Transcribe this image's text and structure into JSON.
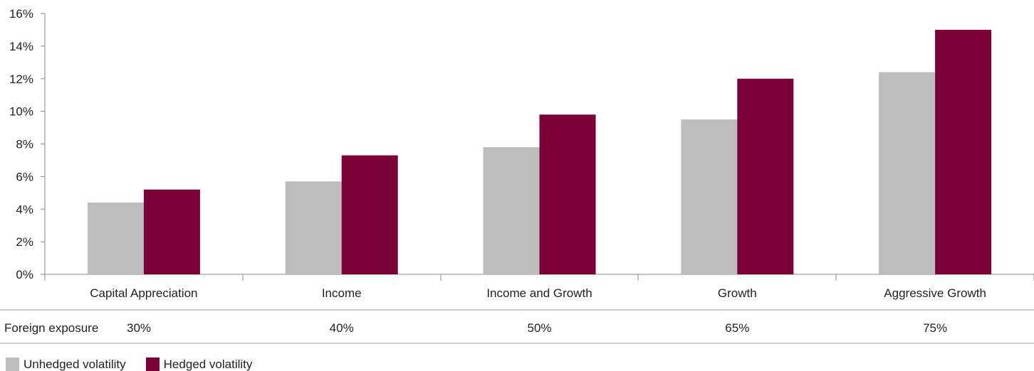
{
  "chart_data": {
    "type": "bar",
    "categories": [
      "Capital Appreciation",
      "Income",
      "Income and Growth",
      "Growth",
      "Aggressive Growth"
    ],
    "series": [
      {
        "name": "Unhedged volatility",
        "color": "#bcbdbc",
        "values": [
          4.4,
          5.7,
          7.8,
          9.5,
          12.4
        ]
      },
      {
        "name": "Hedged volatility",
        "color": "#7b0037",
        "values": [
          5.2,
          7.3,
          9.8,
          12.0,
          15.0
        ]
      }
    ],
    "ylim": [
      0,
      16
    ],
    "yticks": [
      "0%",
      "2%",
      "4%",
      "6%",
      "8%",
      "10%",
      "12%",
      "14%",
      "16%"
    ],
    "grid": false,
    "legend_position": "bottom-left",
    "exposure_row": {
      "label": "Foreign exposure",
      "values": [
        "30%",
        "40%",
        "50%",
        "65%",
        "75%"
      ]
    }
  }
}
